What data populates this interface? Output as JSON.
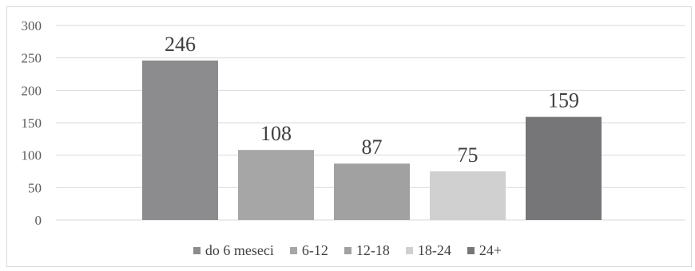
{
  "chart_data": {
    "type": "bar",
    "title": "",
    "xlabel": "",
    "ylabel": "",
    "ylim": [
      0,
      300
    ],
    "yticks": [
      0,
      50,
      100,
      150,
      200,
      250,
      300
    ],
    "grid": true,
    "legend_position": "bottom",
    "series": [
      {
        "name": "do 6 meseci",
        "value": 246,
        "label": "246",
        "color": "#8c8c8e"
      },
      {
        "name": "6-12",
        "value": 108,
        "label": "108",
        "color": "#a6a6a6"
      },
      {
        "name": "12-18",
        "value": 87,
        "label": "87",
        "color": "#a1a1a1"
      },
      {
        "name": "18-24",
        "value": 75,
        "label": "75",
        "color": "#d0d0d0"
      },
      {
        "name": "24+",
        "value": 159,
        "label": "159",
        "color": "#767679"
      }
    ]
  }
}
